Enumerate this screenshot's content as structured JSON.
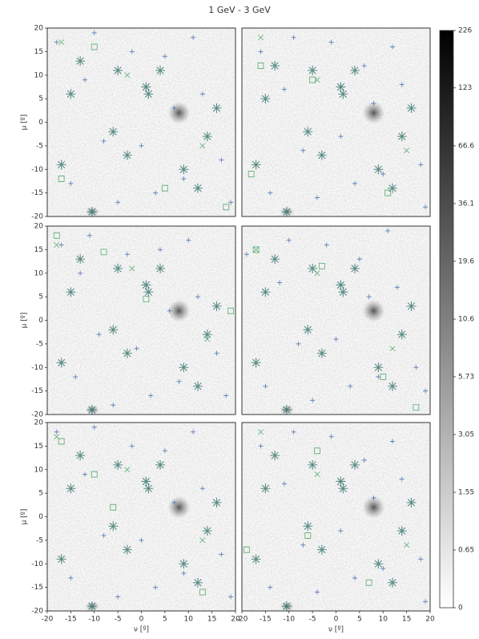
{
  "title": "1 GeV - 3 GeV",
  "colorbar": {
    "lim": [
      0,
      226
    ],
    "ticks": [
      0,
      0.65,
      1.55,
      3.05,
      5.73,
      10.6,
      19.6,
      36.1,
      66.6,
      123,
      226
    ],
    "scale": "asinh",
    "colors": [
      "#ffffff",
      "#000000"
    ]
  },
  "chart_data": [
    {
      "type": "scatter",
      "xlim": [
        -20,
        20
      ],
      "ylim": [
        -20,
        20
      ],
      "ylabel": "μ [º]",
      "yticks": [
        -20,
        -15,
        -10,
        -5,
        0,
        5,
        10,
        15,
        20
      ],
      "series": [
        {
          "marker": "+",
          "color": "#4c72b0",
          "x": [
            -18,
            -12,
            -8,
            -2,
            3,
            7,
            11,
            17,
            -15,
            -5,
            5,
            13,
            19,
            -10,
            0,
            9
          ],
          "values": [
            17,
            9,
            -4,
            15,
            -15,
            3,
            18,
            -8,
            -13,
            -17,
            14,
            6,
            -17,
            19,
            -5,
            -12
          ]
        },
        {
          "marker": "*",
          "color": "#3d7a72",
          "x": [
            1,
            1.5,
            4,
            -10.5,
            -15,
            -6,
            -3,
            16,
            14,
            -13,
            12,
            -17,
            9,
            -5
          ],
          "values": [
            7.5,
            6,
            11,
            -19,
            6,
            -2,
            -7,
            3,
            -3,
            13,
            -14,
            -9,
            -10,
            11
          ]
        },
        {
          "marker": "x",
          "color": "#55a868",
          "x": [
            -3,
            13,
            -17
          ],
          "values": [
            10,
            -5,
            17
          ]
        },
        {
          "marker": "s",
          "color": "#55a868",
          "x": [
            -17,
            5,
            18,
            -10
          ],
          "values": [
            -12,
            -14,
            -18,
            16
          ]
        }
      ]
    },
    {
      "type": "scatter",
      "xlim": [
        -20,
        20
      ],
      "ylim": [
        -20,
        20
      ],
      "series": [
        {
          "marker": "+",
          "color": "#4c72b0",
          "x": [
            -16,
            -11,
            -7,
            -1,
            4,
            8,
            12,
            18,
            -14,
            -4,
            6,
            14,
            19,
            -9,
            1,
            10
          ],
          "values": [
            15,
            7,
            -6,
            17,
            -13,
            4,
            16,
            -9,
            -15,
            -16,
            12,
            8,
            -18,
            18,
            -3,
            -11
          ]
        },
        {
          "marker": "*",
          "color": "#3d7a72",
          "x": [
            1,
            1.5,
            4,
            -10.5,
            -15,
            -6,
            -3,
            16,
            14,
            -13,
            12,
            -17,
            9,
            -5
          ],
          "values": [
            7.5,
            6,
            11,
            -19,
            5,
            -2,
            -7,
            3,
            -3,
            12,
            -14,
            -9,
            -10,
            11
          ]
        },
        {
          "marker": "x",
          "color": "#55a868",
          "x": [
            -4,
            15,
            -16
          ],
          "values": [
            9,
            -6,
            18
          ]
        },
        {
          "marker": "s",
          "color": "#55a868",
          "x": [
            -18,
            -16,
            11,
            -5
          ],
          "values": [
            -11,
            12,
            -15,
            9
          ]
        }
      ]
    },
    {
      "type": "scatter",
      "xlim": [
        -20,
        20
      ],
      "ylim": [
        -20,
        20
      ],
      "ylabel": "μ [º]",
      "yticks": [
        -20,
        -15,
        -10,
        -5,
        0,
        5,
        10,
        15,
        20
      ],
      "series": [
        {
          "marker": "+",
          "color": "#4c72b0",
          "x": [
            -17,
            -13,
            -9,
            -3,
            2,
            6,
            10,
            16,
            -14,
            -6,
            4,
            12,
            18,
            -11,
            -1,
            8
          ],
          "values": [
            16,
            10,
            -3,
            14,
            -16,
            2,
            17,
            -7,
            -12,
            -18,
            15,
            5,
            -16,
            18,
            -6,
            -13
          ]
        },
        {
          "marker": "*",
          "color": "#3d7a72",
          "x": [
            1,
            1.5,
            4,
            -10.5,
            -15,
            -6,
            -3,
            16,
            14,
            -13,
            12,
            -17,
            9,
            -5
          ],
          "values": [
            7.5,
            6,
            11,
            -19,
            6,
            -2,
            -7,
            3,
            -3,
            13,
            -14,
            -9,
            -10,
            11
          ]
        },
        {
          "marker": "x",
          "color": "#55a868",
          "x": [
            -2,
            14,
            -18
          ],
          "values": [
            11,
            -4,
            16
          ]
        },
        {
          "marker": "s",
          "color": "#55a868",
          "x": [
            -18,
            1,
            -8,
            19
          ],
          "values": [
            18,
            4.5,
            14.5,
            2
          ]
        }
      ]
    },
    {
      "type": "scatter",
      "xlim": [
        -20,
        20
      ],
      "ylim": [
        -20,
        20
      ],
      "series": [
        {
          "marker": "+",
          "color": "#4c72b0",
          "x": [
            -19,
            -12,
            -8,
            -2,
            3,
            7,
            11,
            17,
            -15,
            -5,
            5,
            13,
            19,
            -10,
            0,
            9
          ],
          "values": [
            14,
            8,
            -5,
            16,
            -14,
            5,
            19,
            -10,
            -14,
            -17,
            13,
            7,
            -15,
            17,
            -4,
            -12
          ]
        },
        {
          "marker": "*",
          "color": "#3d7a72",
          "x": [
            1,
            1.5,
            4,
            -10.5,
            -15,
            -6,
            -3,
            16,
            14,
            -13,
            12,
            -17,
            9,
            -5
          ],
          "values": [
            7.5,
            6,
            11,
            -19,
            6,
            -2,
            -7,
            3,
            -3,
            13,
            -14,
            -9,
            -10,
            11
          ]
        },
        {
          "marker": "x",
          "color": "#55a868",
          "x": [
            -4,
            12,
            -17
          ],
          "values": [
            10,
            -6,
            15
          ]
        },
        {
          "marker": "s",
          "color": "#55a868",
          "x": [
            -17,
            -3,
            10,
            17
          ],
          "values": [
            15,
            11.5,
            -12,
            -18.5
          ]
        }
      ]
    },
    {
      "type": "scatter",
      "xlim": [
        -20,
        20
      ],
      "ylim": [
        -20,
        20
      ],
      "ylabel": "μ [º]",
      "yticks": [
        -20,
        -15,
        -10,
        -5,
        0,
        5,
        10,
        15,
        20
      ],
      "xlabel": "ν [º]",
      "xticks": [
        -20,
        -15,
        -10,
        -5,
        0,
        5,
        10,
        15,
        20
      ],
      "series": [
        {
          "marker": "+",
          "color": "#4c72b0",
          "x": [
            -18,
            -12,
            -8,
            -2,
            3,
            7,
            11,
            17,
            -15,
            -5,
            5,
            13,
            19,
            -10,
            0,
            9
          ],
          "values": [
            18,
            9,
            -4,
            15,
            -15,
            3,
            18,
            -8,
            -13,
            -17,
            14,
            6,
            -17,
            19,
            -5,
            -12
          ]
        },
        {
          "marker": "*",
          "color": "#3d7a72",
          "x": [
            1,
            1.5,
            4,
            -10.5,
            -15,
            -6,
            -3,
            16,
            14,
            -13,
            12,
            -17,
            9,
            -5
          ],
          "values": [
            7.5,
            6,
            11,
            -19,
            6,
            -2,
            -7,
            3,
            -3,
            13,
            -14,
            -9,
            -10,
            11
          ]
        },
        {
          "marker": "x",
          "color": "#55a868",
          "x": [
            -3,
            13,
            -18
          ],
          "values": [
            10,
            -5,
            17
          ]
        },
        {
          "marker": "s",
          "color": "#55a868",
          "x": [
            -17,
            -6,
            13,
            -10
          ],
          "values": [
            16,
            2,
            -16,
            9
          ]
        }
      ]
    },
    {
      "type": "scatter",
      "xlim": [
        -20,
        20
      ],
      "ylim": [
        -20,
        20
      ],
      "xlabel": "ν [º]",
      "xticks": [
        -20,
        -15,
        -10,
        -5,
        0,
        5,
        10,
        15,
        20
      ],
      "series": [
        {
          "marker": "+",
          "color": "#4c72b0",
          "x": [
            -16,
            -11,
            -7,
            -1,
            4,
            8,
            12,
            18,
            -14,
            -4,
            6,
            14,
            19,
            -9,
            1,
            10
          ],
          "values": [
            15,
            7,
            -6,
            17,
            -13,
            4,
            16,
            -9,
            -15,
            -16,
            12,
            8,
            -18,
            18,
            -3,
            -11
          ]
        },
        {
          "marker": "*",
          "color": "#3d7a72",
          "x": [
            1,
            1.5,
            4,
            -10.5,
            -15,
            -6,
            -3,
            16,
            14,
            -13,
            12,
            -17,
            9,
            -5
          ],
          "values": [
            7.5,
            6,
            11,
            -19,
            6,
            -2,
            -7,
            3,
            -3,
            13,
            -14,
            -9,
            -10,
            11
          ]
        },
        {
          "marker": "x",
          "color": "#55a868",
          "x": [
            -4,
            15,
            -16
          ],
          "values": [
            9,
            -6,
            18
          ]
        },
        {
          "marker": "s",
          "color": "#55a868",
          "x": [
            -19,
            -6,
            7,
            -4
          ],
          "values": [
            -7,
            -4,
            -14,
            14
          ]
        }
      ]
    }
  ]
}
